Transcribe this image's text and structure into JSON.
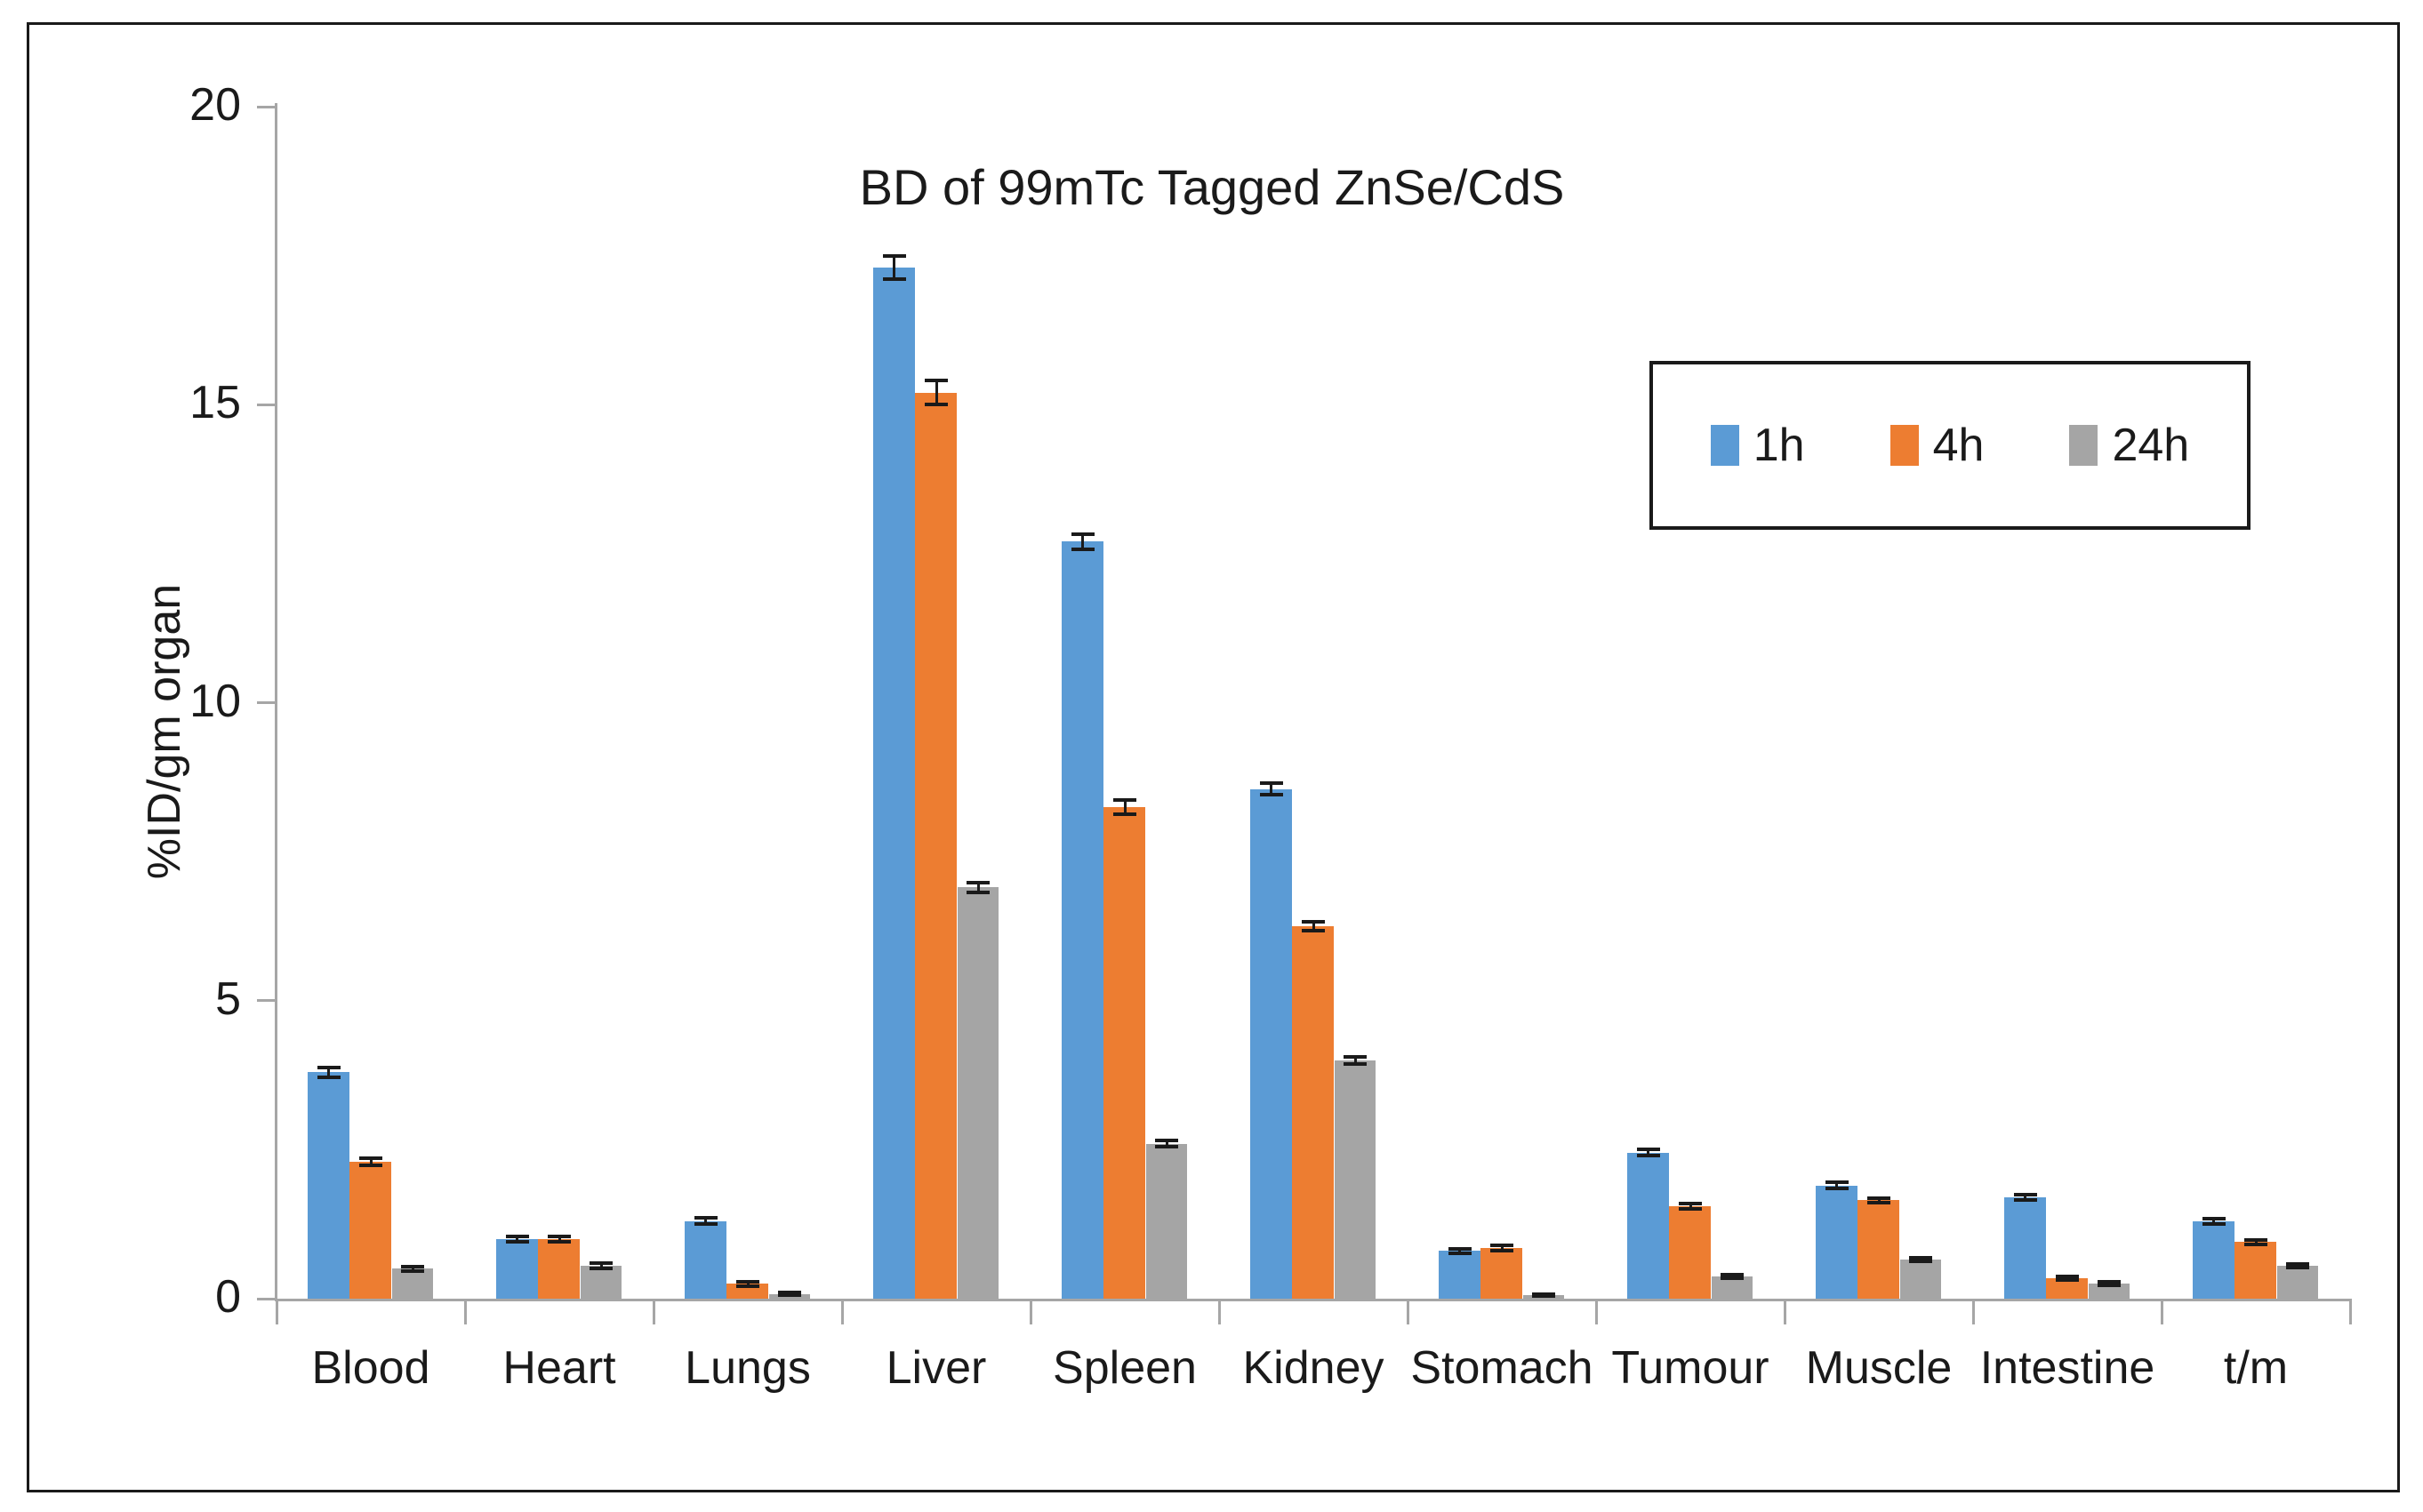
{
  "chart_data": {
    "type": "bar",
    "title": "BD of 99mTc Tagged ZnSe/CdS",
    "xlabel": "",
    "ylabel": "%ID/gm organ",
    "ylim": [
      0,
      20
    ],
    "yticks": [
      0,
      5,
      10,
      15,
      20
    ],
    "grid": false,
    "legend_position": "top-right, boxed, horizontal",
    "error_bars": true,
    "categories": [
      "Blood",
      "Heart",
      "Lungs",
      "Liver",
      "Spleen",
      "Kidney",
      "Stomach",
      "Tumour",
      "Muscle",
      "Intestine",
      "t/m"
    ],
    "series": [
      {
        "name": "1h",
        "color": "#5B9BD5",
        "values": [
          3.8,
          1.0,
          1.3,
          17.3,
          12.7,
          8.55,
          0.8,
          2.45,
          1.9,
          1.7,
          1.3
        ],
        "errors": [
          0.08,
          0.05,
          0.05,
          0.2,
          0.12,
          0.1,
          0.04,
          0.05,
          0.05,
          0.04,
          0.04
        ]
      },
      {
        "name": "4h",
        "color": "#ED7D31",
        "values": [
          2.3,
          1.0,
          0.25,
          15.2,
          8.25,
          6.25,
          0.85,
          1.55,
          1.65,
          0.35,
          0.95
        ],
        "errors": [
          0.06,
          0.05,
          0.04,
          0.2,
          0.12,
          0.07,
          0.04,
          0.05,
          0.04,
          0.03,
          0.04
        ]
      },
      {
        "name": "24h",
        "color": "#A5A5A5",
        "values": [
          0.5,
          0.55,
          0.08,
          6.9,
          2.6,
          4.0,
          0.06,
          0.38,
          0.65,
          0.25,
          0.55
        ],
        "errors": [
          0.04,
          0.04,
          0.02,
          0.08,
          0.05,
          0.06,
          0.02,
          0.03,
          0.03,
          0.03,
          0.03
        ]
      }
    ],
    "axis_color": "#a6a6a6",
    "error_bar_color": "#1a1a1a"
  }
}
